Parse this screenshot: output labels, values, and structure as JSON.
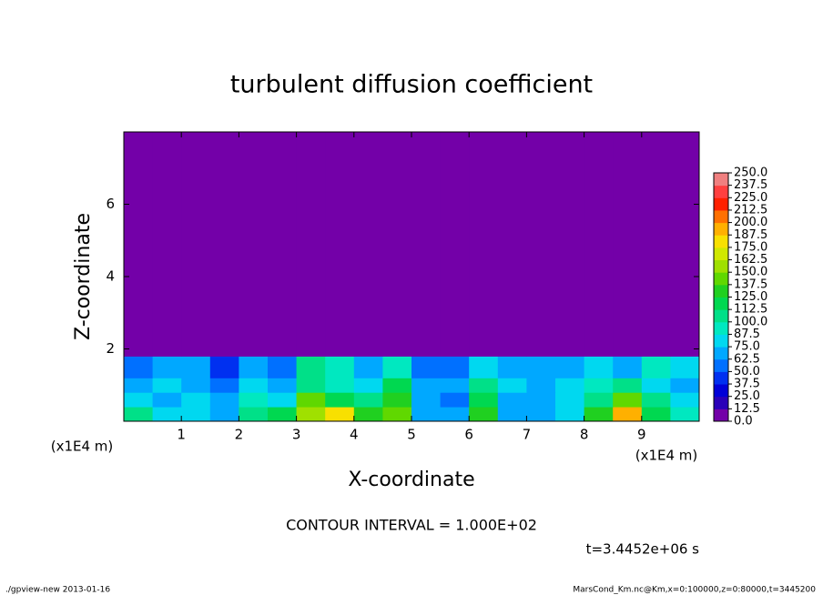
{
  "chart_data": {
    "type": "heatmap",
    "title": "turbulent diffusion coefficient",
    "xlabel": "X-coordinate",
    "ylabel": "Z-coordinate",
    "x_unit": "(x1E4 m)",
    "y_unit": "(x1E4 m)",
    "annotation": "CONTOUR INTERVAL = 1.000E+02",
    "time": "t=3.4452e+06 s",
    "footer_left": "./gpview-new  2013-01-16",
    "footer_right": "MarsCond_Km.nc@Km,x=0:100000,z=0:80000,t=3445200",
    "xlim": [
      0,
      10
    ],
    "ylim": [
      0,
      8
    ],
    "xticks": [
      1,
      2,
      3,
      4,
      5,
      6,
      7,
      8,
      9
    ],
    "yticks": [
      2,
      4,
      6
    ],
    "x_edges": [
      0,
      0.5,
      1,
      1.5,
      2,
      2.5,
      3,
      3.5,
      4,
      4.5,
      5,
      5.5,
      6,
      6.5,
      7,
      7.5,
      8,
      8.5,
      9,
      9.5,
      10
    ],
    "z_edges": [
      0,
      0.4,
      0.8,
      1.2,
      1.8,
      8
    ],
    "values": [
      [
        100,
        75,
        75,
        62.5,
        100,
        112.5,
        150,
        175,
        125,
        137.5,
        62.5,
        62.5,
        125,
        62.5,
        62.5,
        75,
        125,
        187.5,
        112.5,
        87.5
      ],
      [
        75,
        62.5,
        75,
        62.5,
        87.5,
        75,
        137.5,
        112.5,
        100,
        125,
        62.5,
        50,
        112.5,
        62.5,
        62.5,
        75,
        100,
        137.5,
        100,
        75
      ],
      [
        62.5,
        75,
        62.5,
        50,
        75,
        62.5,
        100,
        87.5,
        75,
        112.5,
        62.5,
        62.5,
        100,
        75,
        62.5,
        75,
        87.5,
        100,
        75,
        62.5
      ],
      [
        50,
        62.5,
        62.5,
        37.5,
        62.5,
        50,
        100,
        87.5,
        62.5,
        87.5,
        50,
        50,
        75,
        62.5,
        62.5,
        62.5,
        75,
        62.5,
        87.5,
        75
      ],
      [
        0,
        0,
        0,
        0,
        0,
        0,
        0,
        0,
        0,
        0,
        0,
        0,
        0,
        0,
        0,
        0,
        0,
        0,
        0,
        0
      ]
    ],
    "levels": [
      {
        "value": 0,
        "label": "0.0"
      },
      {
        "value": 12.5,
        "label": "12.5"
      },
      {
        "value": 25,
        "label": "25.0"
      },
      {
        "value": 37.5,
        "label": "37.5"
      },
      {
        "value": 50,
        "label": "50.0"
      },
      {
        "value": 62.5,
        "label": "62.5"
      },
      {
        "value": 75,
        "label": "75.0"
      },
      {
        "value": 87.5,
        "label": "87.5"
      },
      {
        "value": 100,
        "label": "100.0"
      },
      {
        "value": 112.5,
        "label": "112.5"
      },
      {
        "value": 125,
        "label": "125.0"
      },
      {
        "value": 137.5,
        "label": "137.5"
      },
      {
        "value": 150,
        "label": "150.0"
      },
      {
        "value": 162.5,
        "label": "162.5"
      },
      {
        "value": 175,
        "label": "175.0"
      },
      {
        "value": 187.5,
        "label": "187.5"
      },
      {
        "value": 200,
        "label": "200.0"
      },
      {
        "value": 212.5,
        "label": "212.5"
      },
      {
        "value": 225,
        "label": "225.0"
      },
      {
        "value": 237.5,
        "label": "237.5"
      },
      {
        "value": 250,
        "label": "250.0"
      }
    ],
    "colors": [
      "#7300a8",
      "#2a00b8",
      "#0000d8",
      "#0030f0",
      "#0070ff",
      "#00a8ff",
      "#00d8f0",
      "#00e8c0",
      "#00e088",
      "#00d850",
      "#20d020",
      "#60d800",
      "#a0e000",
      "#d0e800",
      "#f8e000",
      "#ffb000",
      "#ff7000",
      "#ff2000",
      "#ff4040",
      "#f08080"
    ]
  }
}
